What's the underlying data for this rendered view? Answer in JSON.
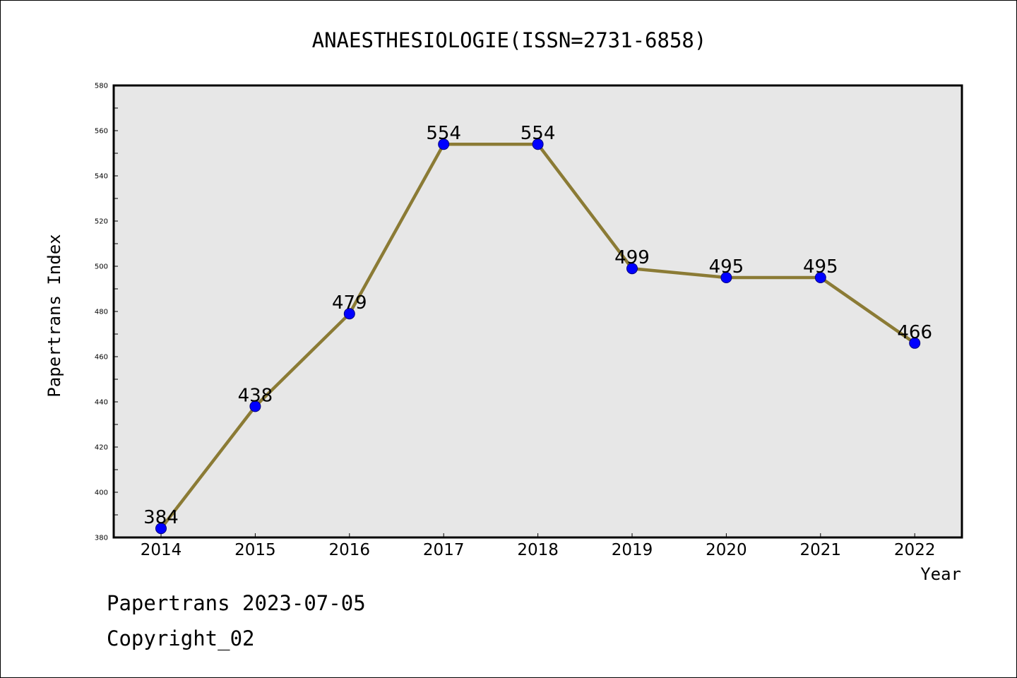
{
  "chart_data": {
    "type": "line",
    "title": "ANAESTHESIOLOGIE(ISSN=2731-6858)",
    "xlabel": "Year",
    "ylabel": "Papertrans Index",
    "categories": [
      "2014",
      "2015",
      "2016",
      "2017",
      "2018",
      "2019",
      "2020",
      "2021",
      "2022"
    ],
    "series": [
      {
        "values": [
          384,
          438,
          479,
          554,
          554,
          499,
          495,
          495,
          466
        ]
      }
    ],
    "data_labels": [
      "384",
      "438",
      "479",
      "554",
      "554",
      "499",
      "495",
      "495",
      "466"
    ],
    "ylim": [
      380,
      580
    ],
    "yticks": [
      "380",
      "400",
      "420",
      "440",
      "460",
      "480",
      "500",
      "520",
      "540",
      "560",
      "580"
    ],
    "grid": false,
    "legend": "none",
    "colors": {
      "line": "#8B7B35",
      "marker": "#0000FF",
      "marker_edge": "#000080",
      "plot_bg": "#E7E7E7"
    }
  },
  "footer": {
    "line1": "Papertrans 2023-07-05",
    "line2": "Copyright_02"
  }
}
